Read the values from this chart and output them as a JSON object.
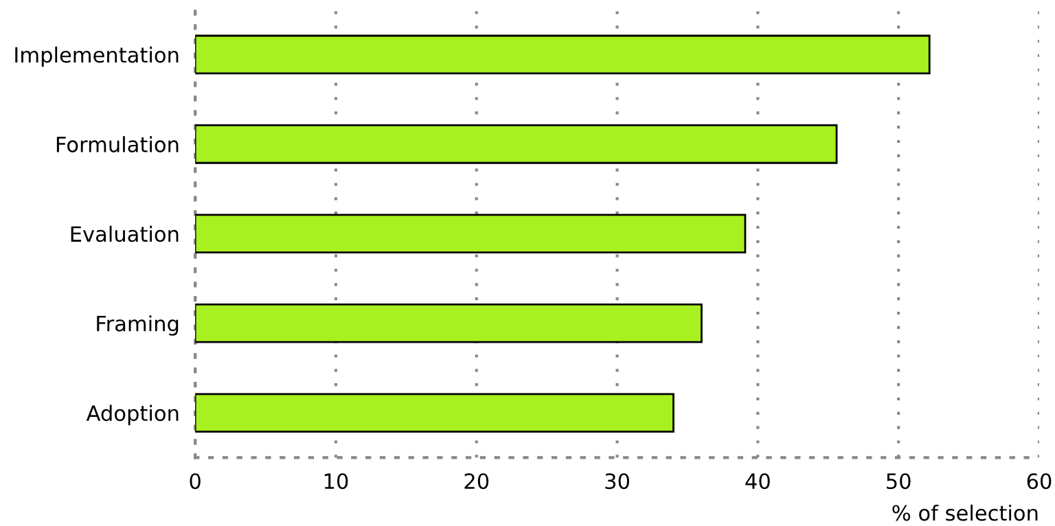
{
  "chart_data": {
    "type": "bar",
    "orientation": "horizontal",
    "categories": [
      "Implementation",
      "Formulation",
      "Evaluation",
      "Framing",
      "Adoption"
    ],
    "values": [
      52.2,
      45.6,
      39.1,
      36.0,
      34.0
    ],
    "color": "#a8f020",
    "xlabel": "% of selection",
    "xlim": [
      0,
      60
    ],
    "xticks": [
      0,
      10,
      20,
      30,
      40,
      50,
      60
    ],
    "grid": "x"
  }
}
